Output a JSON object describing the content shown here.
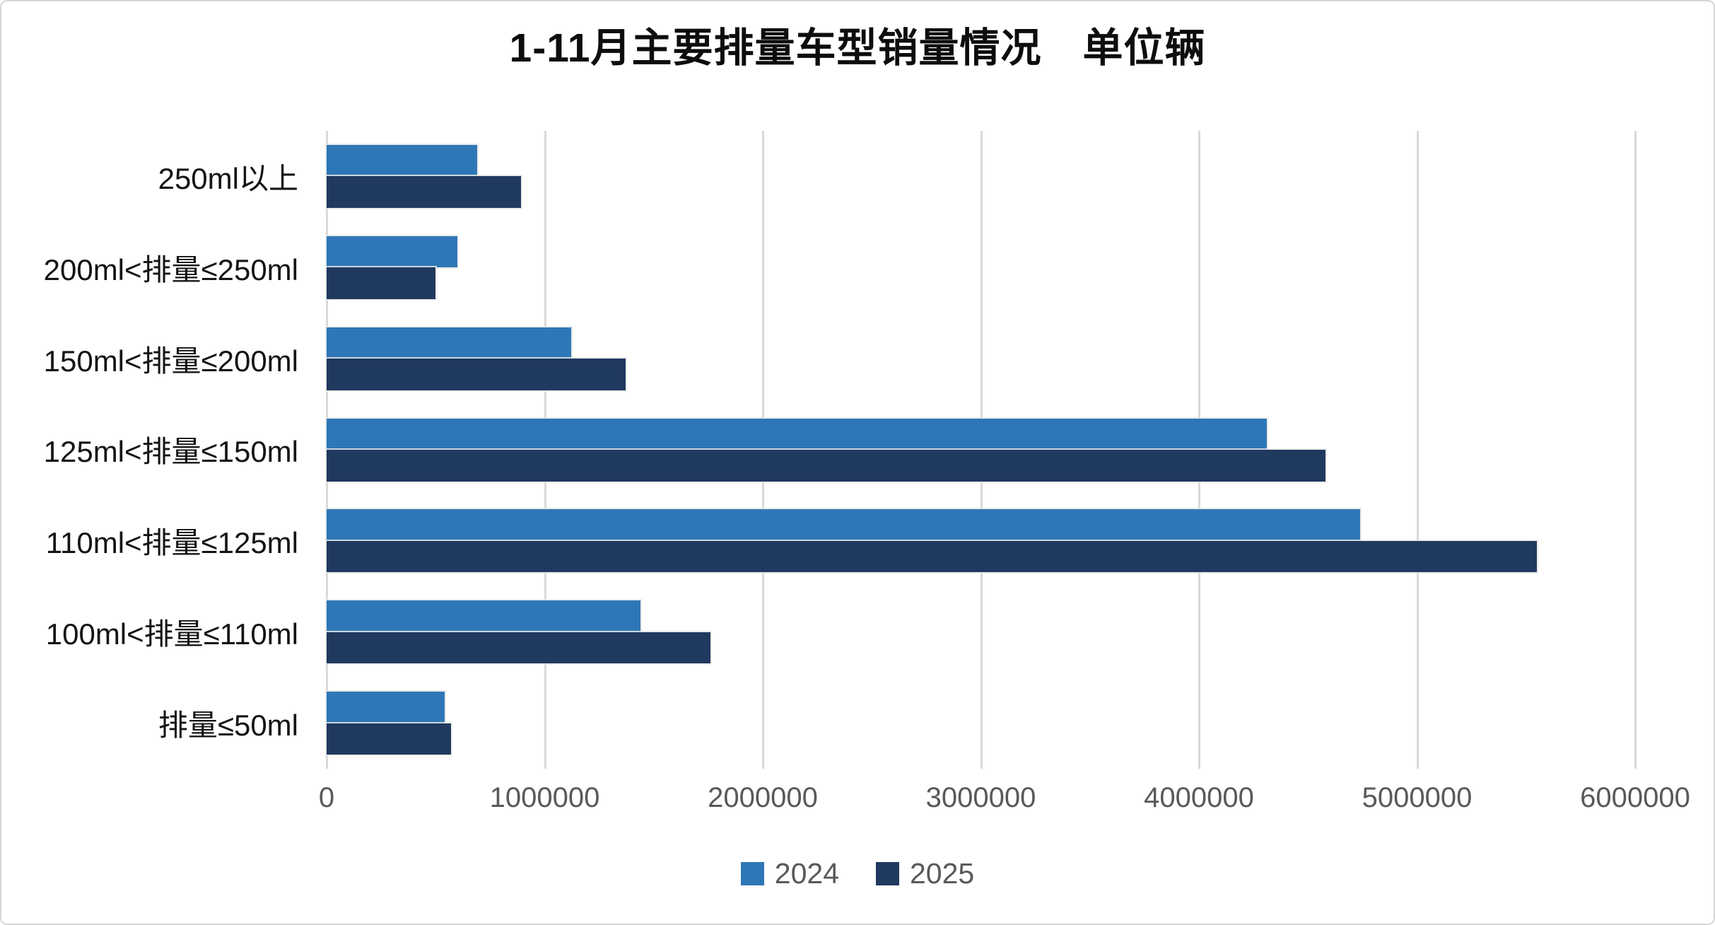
{
  "title": "1-11月主要排量车型销量情况　单位辆",
  "chart_data": {
    "type": "bar",
    "orientation": "horizontal",
    "title": "1-11月主要排量车型销量情况　单位辆",
    "categories": [
      "250ml以上",
      "200ml<排量≤250ml",
      "150ml<排量≤200ml",
      "125ml<排量≤150ml",
      "110ml<排量≤125ml",
      "100ml<排量≤110ml",
      "排量≤50ml"
    ],
    "series": [
      {
        "name": "2024",
        "color": "#2E77B6",
        "values": [
          690000,
          600000,
          1120000,
          4310000,
          4740000,
          1440000,
          540000
        ]
      },
      {
        "name": "2025",
        "color": "#20395E",
        "values": [
          890000,
          500000,
          1370000,
          4580000,
          5550000,
          1760000,
          570000
        ]
      }
    ],
    "xlim": [
      0,
      6000000
    ],
    "x_ticks": [
      0,
      1000000,
      2000000,
      3000000,
      4000000,
      5000000,
      6000000
    ],
    "x_tick_labels": [
      "0",
      "1000000",
      "2000000",
      "3000000",
      "4000000",
      "5000000",
      "6000000"
    ],
    "grid": true,
    "gridline_color": "#D9D9D9",
    "legend_position": "bottom",
    "legend_text_color": "#595959",
    "axis_text_color": "#595959"
  }
}
